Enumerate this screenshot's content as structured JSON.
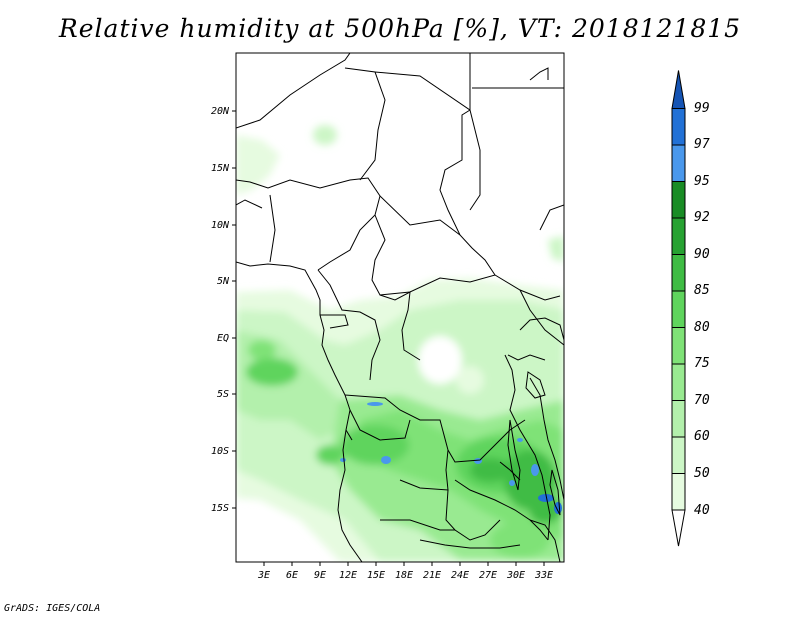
{
  "title": "Relative humidity at 500hPa [%], VT: 2018121815",
  "credit": "GrADS: IGES/COLA",
  "lat_labels": [
    "20N",
    "15N",
    "10N",
    "5N",
    "EQ",
    "5S",
    "10S",
    "15S"
  ],
  "lon_labels": [
    "3E",
    "6E",
    "9E",
    "12E",
    "15E",
    "18E",
    "21E",
    "24E",
    "27E",
    "30E",
    "33E"
  ],
  "colorbar": {
    "levels": [
      "40",
      "50",
      "60",
      "70",
      "75",
      "80",
      "85",
      "90",
      "92",
      "95",
      "97",
      "99"
    ],
    "colors": [
      "#ffffff",
      "#e6fbe0",
      "#ccf6c6",
      "#b3f0ac",
      "#99ea91",
      "#7fe277",
      "#5fd45d",
      "#3fbc44",
      "#27a232",
      "#198c25",
      "#4a98ec",
      "#2271d6",
      "#1554b4"
    ]
  }
}
